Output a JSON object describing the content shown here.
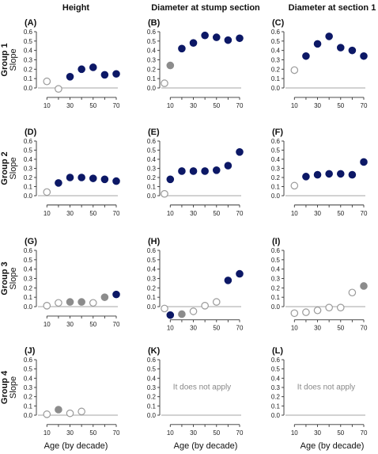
{
  "column_titles": [
    "Height",
    "Diameter at stump section",
    "Diameter at section 1"
  ],
  "row_titles": [
    "Group 1",
    "Group 2",
    "Group 3",
    "Group 4"
  ],
  "ylabel": "Slope",
  "xlabel": "Age (by decade)",
  "colors": {
    "navy": "#0c1866",
    "gray": "#8c8c8c",
    "zero_line": "#c4c4c4"
  },
  "chart_data": [
    {
      "type": "scatter",
      "panel": "(A)",
      "column": "Height",
      "row": "Group 1",
      "x": [
        10,
        20,
        30,
        40,
        50,
        60,
        70
      ],
      "y": [
        0.07,
        -0.01,
        0.12,
        0.2,
        0.22,
        0.14,
        0.15
      ],
      "style": [
        "open",
        "open",
        "navy",
        "navy",
        "navy",
        "navy",
        "navy"
      ],
      "xticks": [
        10,
        30,
        50,
        70
      ],
      "yticks": [
        0.0,
        0.1,
        0.2,
        0.3,
        0.4,
        0.5,
        0.6
      ],
      "ylim": [
        -0.05,
        0.65
      ],
      "annotation": ""
    },
    {
      "type": "scatter",
      "panel": "(B)",
      "column": "Diameter at stump section",
      "row": "Group 1",
      "x": [
        5,
        10,
        20,
        30,
        40,
        50,
        60,
        70
      ],
      "y": [
        0.05,
        0.24,
        0.42,
        0.48,
        0.56,
        0.54,
        0.51,
        0.53
      ],
      "style": [
        "open",
        "gray",
        "navy",
        "navy",
        "navy",
        "navy",
        "navy",
        "navy"
      ],
      "xticks": [
        10,
        30,
        50,
        70
      ],
      "yticks": [
        0.0,
        0.1,
        0.2,
        0.3,
        0.4,
        0.5,
        0.6
      ],
      "ylim": [
        -0.05,
        0.65
      ],
      "annotation": ""
    },
    {
      "type": "scatter",
      "panel": "(C)",
      "column": "Diameter at section 1",
      "row": "Group 1",
      "x": [
        10,
        20,
        30,
        40,
        50,
        60,
        70
      ],
      "y": [
        0.19,
        0.34,
        0.47,
        0.55,
        0.43,
        0.4,
        0.34
      ],
      "style": [
        "open",
        "navy",
        "navy",
        "navy",
        "navy",
        "navy",
        "navy"
      ],
      "xticks": [
        10,
        30,
        50,
        70
      ],
      "yticks": [
        0.0,
        0.1,
        0.2,
        0.3,
        0.4,
        0.5,
        0.6
      ],
      "ylim": [
        -0.05,
        0.65
      ],
      "annotation": ""
    },
    {
      "type": "scatter",
      "panel": "(D)",
      "column": "Height",
      "row": "Group 2",
      "x": [
        10,
        20,
        30,
        40,
        50,
        60,
        70
      ],
      "y": [
        0.04,
        0.14,
        0.2,
        0.2,
        0.19,
        0.18,
        0.16
      ],
      "style": [
        "open",
        "navy",
        "navy",
        "navy",
        "navy",
        "navy",
        "navy"
      ],
      "xticks": [
        10,
        30,
        50,
        70
      ],
      "yticks": [
        0.0,
        0.1,
        0.2,
        0.3,
        0.4,
        0.5,
        0.6
      ],
      "ylim": [
        -0.05,
        0.65
      ],
      "annotation": ""
    },
    {
      "type": "scatter",
      "panel": "(E)",
      "column": "Diameter at stump section",
      "row": "Group 2",
      "x": [
        5,
        10,
        20,
        30,
        40,
        50,
        60,
        70
      ],
      "y": [
        0.02,
        0.18,
        0.27,
        0.27,
        0.27,
        0.28,
        0.33,
        0.48
      ],
      "style": [
        "open",
        "navy",
        "navy",
        "navy",
        "navy",
        "navy",
        "navy",
        "navy"
      ],
      "xticks": [
        10,
        30,
        50,
        70
      ],
      "yticks": [
        0.0,
        0.1,
        0.2,
        0.3,
        0.4,
        0.5,
        0.6
      ],
      "ylim": [
        -0.05,
        0.65
      ],
      "annotation": ""
    },
    {
      "type": "scatter",
      "panel": "(F)",
      "column": "Diameter at section 1",
      "row": "Group 2",
      "x": [
        10,
        20,
        30,
        40,
        50,
        60,
        70
      ],
      "y": [
        0.11,
        0.21,
        0.23,
        0.24,
        0.24,
        0.23,
        0.37
      ],
      "style": [
        "open",
        "navy",
        "navy",
        "navy",
        "navy",
        "navy",
        "navy"
      ],
      "xticks": [
        10,
        30,
        50,
        70
      ],
      "yticks": [
        0.0,
        0.1,
        0.2,
        0.3,
        0.4,
        0.5,
        0.6
      ],
      "ylim": [
        -0.05,
        0.65
      ],
      "annotation": ""
    },
    {
      "type": "scatter",
      "panel": "(G)",
      "column": "Height",
      "row": "Group 3",
      "x": [
        10,
        20,
        30,
        40,
        50,
        60,
        70
      ],
      "y": [
        0.01,
        0.04,
        0.05,
        0.05,
        0.04,
        0.1,
        0.13
      ],
      "style": [
        "open",
        "open",
        "gray",
        "gray",
        "open",
        "gray",
        "navy"
      ],
      "xticks": [
        10,
        30,
        50,
        70
      ],
      "yticks": [
        0.0,
        0.1,
        0.2,
        0.3,
        0.4,
        0.5,
        0.6
      ],
      "ylim": [
        -0.05,
        0.65
      ],
      "annotation": ""
    },
    {
      "type": "scatter",
      "panel": "(H)",
      "column": "Diameter at stump section",
      "row": "Group 3",
      "x": [
        5,
        10,
        20,
        30,
        40,
        50,
        60,
        70
      ],
      "y": [
        -0.02,
        -0.09,
        -0.08,
        -0.05,
        0.01,
        0.05,
        0.28,
        0.35
      ],
      "style": [
        "open",
        "navy",
        "gray",
        "open",
        "open",
        "open",
        "navy",
        "navy"
      ],
      "xticks": [
        10,
        30,
        50,
        70
      ],
      "yticks": [
        0.0,
        0.1,
        0.2,
        0.3,
        0.4,
        0.5,
        0.6
      ],
      "ylim": [
        -0.09,
        0.65
      ],
      "annotation": ""
    },
    {
      "type": "scatter",
      "panel": "(I)",
      "column": "Diameter at section 1",
      "row": "Group 3",
      "x": [
        10,
        20,
        30,
        40,
        50,
        60,
        70
      ],
      "y": [
        -0.07,
        -0.06,
        -0.04,
        -0.01,
        -0.01,
        0.15,
        0.22
      ],
      "style": [
        "open",
        "open",
        "open",
        "open",
        "open",
        "open",
        "gray"
      ],
      "xticks": [
        10,
        30,
        50,
        70
      ],
      "yticks": [
        0.0,
        0.1,
        0.2,
        0.3,
        0.4,
        0.5,
        0.6
      ],
      "ylim": [
        -0.09,
        0.65
      ],
      "annotation": ""
    },
    {
      "type": "scatter",
      "panel": "(J)",
      "column": "Height",
      "row": "Group 4",
      "x": [
        10,
        20,
        30,
        40
      ],
      "y": [
        0.01,
        0.06,
        0.02,
        0.04
      ],
      "style": [
        "open",
        "gray",
        "open",
        "open"
      ],
      "xticks": [
        10,
        30,
        50,
        70
      ],
      "yticks": [
        0.0,
        0.1,
        0.2,
        0.3,
        0.4,
        0.5,
        0.6
      ],
      "ylim": [
        -0.05,
        0.65
      ],
      "annotation": ""
    },
    {
      "type": "scatter",
      "panel": "(K)",
      "column": "Diameter at stump section",
      "row": "Group 4",
      "x": [],
      "y": [],
      "style": [],
      "xticks": [
        10,
        30,
        50,
        70
      ],
      "yticks": [
        0.0,
        0.1,
        0.2,
        0.3,
        0.4,
        0.5,
        0.6
      ],
      "ylim": [
        -0.05,
        0.65
      ],
      "annotation": "It does not apply"
    },
    {
      "type": "scatter",
      "panel": "(L)",
      "column": "Diameter at section 1",
      "row": "Group 4",
      "x": [],
      "y": [],
      "style": [],
      "xticks": [
        10,
        30,
        50,
        70
      ],
      "yticks": [
        0.0,
        0.1,
        0.2,
        0.3,
        0.4,
        0.5,
        0.6
      ],
      "ylim": [
        -0.05,
        0.65
      ],
      "annotation": "It does not apply"
    }
  ]
}
